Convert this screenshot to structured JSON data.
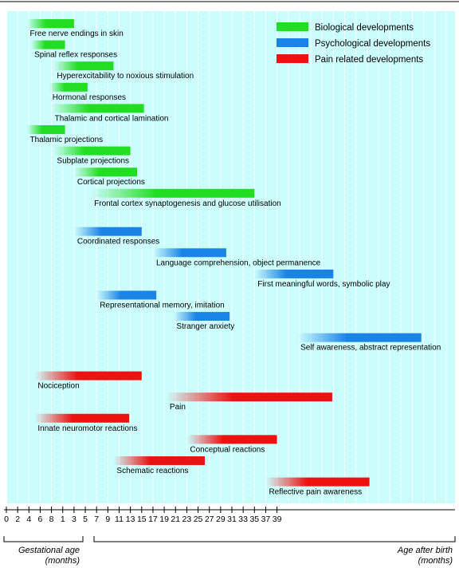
{
  "chart_data": {
    "type": "bar",
    "colors": {
      "biological": "#22dd22",
      "psychological": "#1a84e6",
      "pain": "#ee1111",
      "background": "#ccfdfd"
    },
    "legend": [
      {
        "key": "biological",
        "label": "Biological developments"
      },
      {
        "key": "psychological",
        "label": "Psychological developments"
      },
      {
        "key": "pain",
        "label": "Pain related developments"
      }
    ],
    "gestational_ticks": [
      "0",
      "2",
      "4",
      "6",
      "8"
    ],
    "postnatal_ticks": [
      "1",
      "3",
      "5",
      "7",
      "9",
      "11",
      "13",
      "15",
      "17",
      "19",
      "21",
      "23",
      "25",
      "27",
      "29",
      "31",
      "33",
      "35",
      "37",
      "39"
    ],
    "axis_captions": {
      "gestational_line1": "Gestational age",
      "gestational_line2": "(months)",
      "postnatal_line1": "Age after birth",
      "postnatal_line2": "(months)"
    },
    "bars": [
      {
        "label": "Free nerve endings in skin",
        "category": "biological",
        "start": 1.8,
        "end": 6.0
      },
      {
        "label": "Spinal reflex responses",
        "category": "biological",
        "start": 2.2,
        "end": 5.2
      },
      {
        "label": "Hyperexcitability to noxious stimulation",
        "category": "biological",
        "start": 4.2,
        "end": 9.5
      },
      {
        "label": "Hormonal responses",
        "category": "biological",
        "start": 3.8,
        "end": 7.2
      },
      {
        "label": "Thalamic and cortical lamination",
        "category": "biological",
        "start": 4.0,
        "end": 12.2
      },
      {
        "label": "Thalamic projections",
        "category": "biological",
        "start": 1.8,
        "end": 5.2
      },
      {
        "label": "Subplate projections",
        "category": "biological",
        "start": 4.2,
        "end": 11.0
      },
      {
        "label": "Cortical projections",
        "category": "biological",
        "start": 6.0,
        "end": 11.6
      },
      {
        "label": "Frontal cortex synaptogenesis and glucose utilisation",
        "category": "biological",
        "start": 7.5,
        "end": 22.0
      },
      {
        "label": "Coordinated responses",
        "category": "psychological",
        "start": 6.0,
        "end": 12.0
      },
      {
        "label": "Language comprehension, object permanence",
        "category": "psychological",
        "start": 13.0,
        "end": 19.5
      },
      {
        "label": "First meaningful words, symbolic play",
        "category": "psychological",
        "start": 22.0,
        "end": 29.0
      },
      {
        "label": "Representational memory, imitation",
        "category": "psychological",
        "start": 8.0,
        "end": 13.3
      },
      {
        "label": "Stranger anxiety",
        "category": "psychological",
        "start": 14.8,
        "end": 19.8
      },
      {
        "label": "Self awareness, abstract representation",
        "category": "psychological",
        "start": 25.8,
        "end": 36.8
      },
      {
        "label": "Nociception",
        "category": "pain",
        "start": 2.5,
        "end": 12.0
      },
      {
        "label": "Pain",
        "category": "pain",
        "start": 14.2,
        "end": 28.9
      },
      {
        "label": "Innate neuromotor reactions",
        "category": "pain",
        "start": 2.5,
        "end": 10.9
      },
      {
        "label": "Conceptual reactions",
        "category": "pain",
        "start": 16.0,
        "end": 24.0
      },
      {
        "label": "Schematic reactions",
        "category": "pain",
        "start": 9.5,
        "end": 17.6
      },
      {
        "label": "Reflective pain awareness",
        "category": "pain",
        "start": 23.0,
        "end": 32.2
      }
    ]
  }
}
